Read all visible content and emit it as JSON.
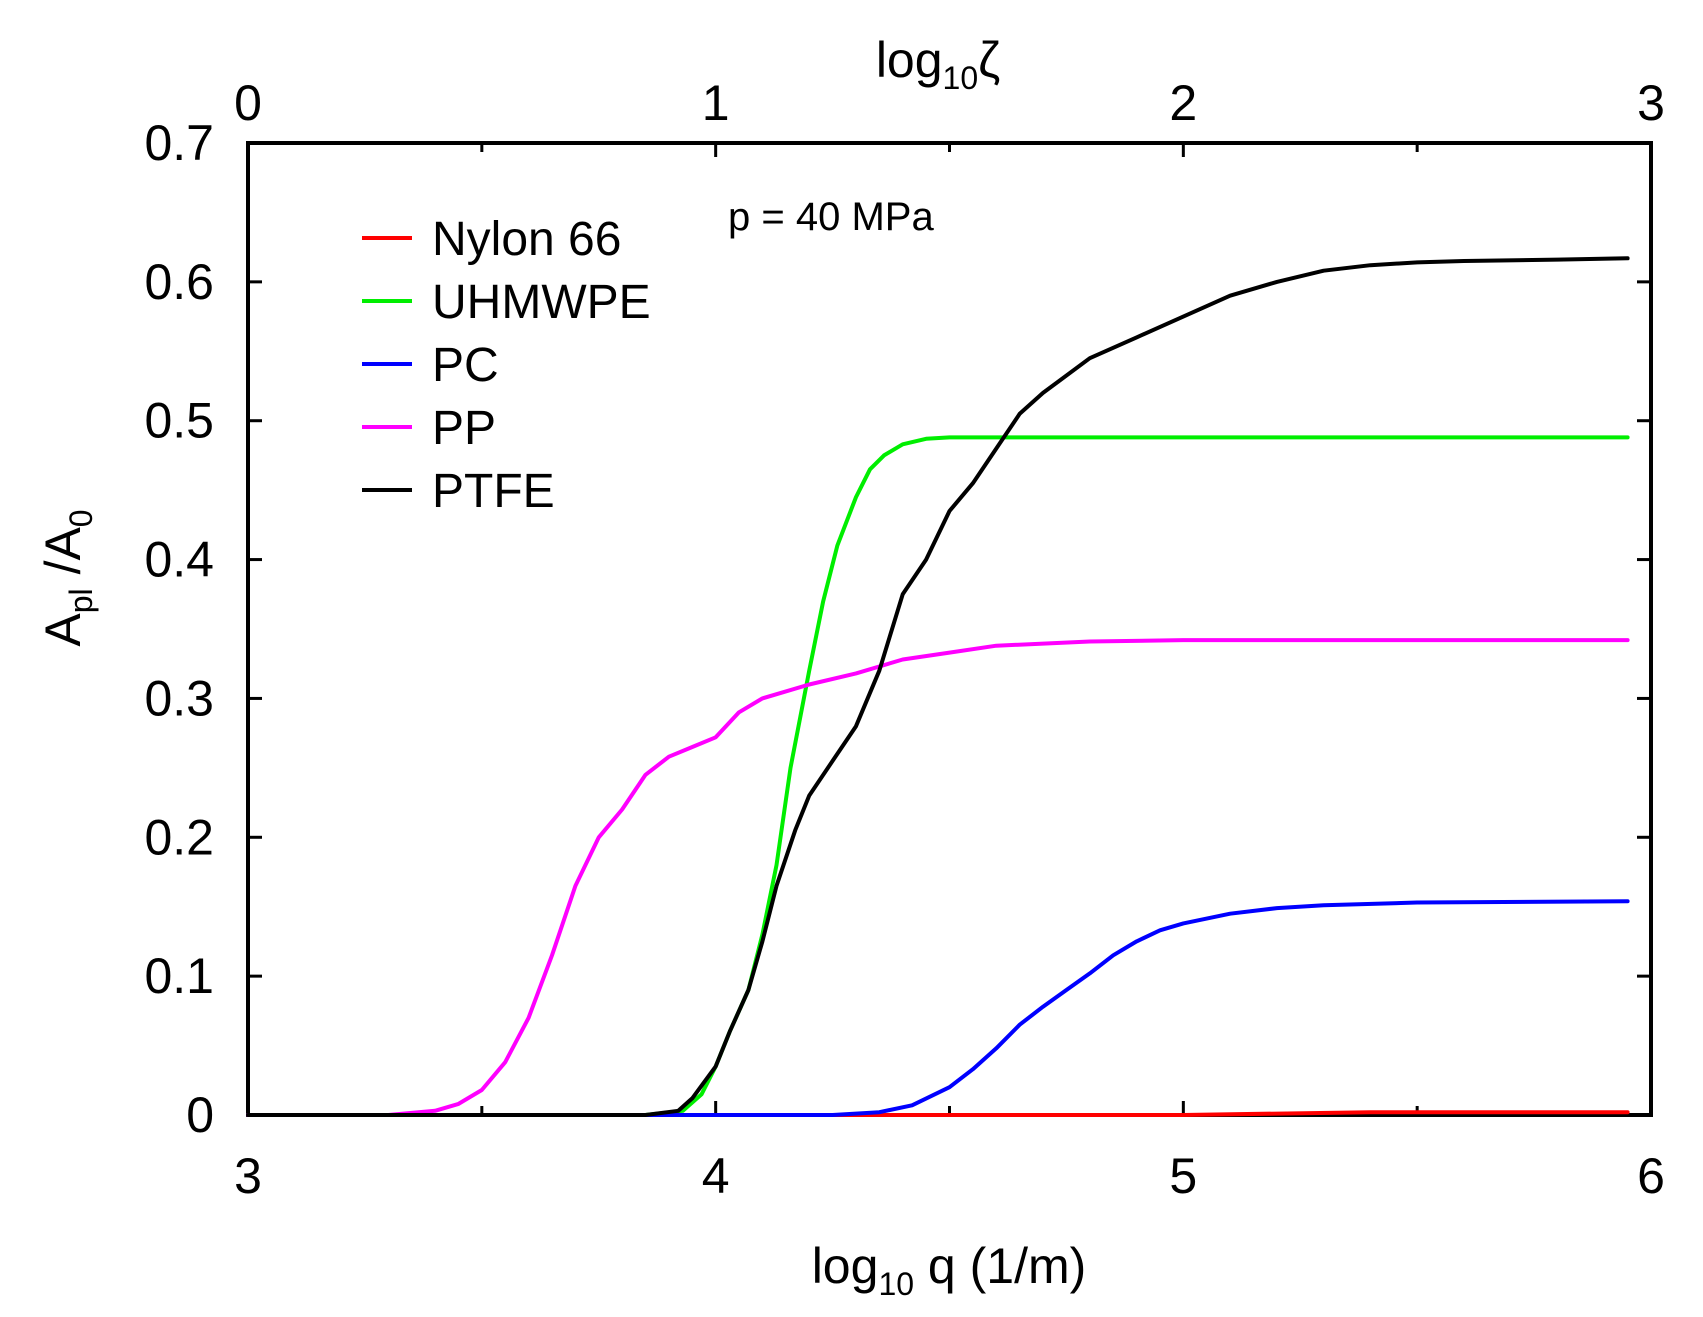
{
  "chart_data": {
    "type": "line",
    "title": "",
    "annotation": "p = 40 MPa",
    "xlabel": {
      "pre": "log",
      "sub": "10",
      "post": " q  (1/m)"
    },
    "ylabel": {
      "main1": "A",
      "sub1": "pl",
      "mid": " /A",
      "sub2": "0"
    },
    "top_xlabel": {
      "pre": "log",
      "sub": "10",
      "post": "ζ"
    },
    "xlim": [
      3,
      6
    ],
    "ylim": [
      0,
      0.7
    ],
    "x_ticks": [
      "3",
      "4",
      "5",
      "6"
    ],
    "top_x_ticks": [
      "0",
      "1",
      "2",
      "3"
    ],
    "y_ticks": [
      "0",
      "0.1",
      "0.2",
      "0.3",
      "0.4",
      "0.5",
      "0.6",
      "0.7"
    ],
    "grid": false,
    "legend_position": "top-left",
    "series": [
      {
        "name": "Nylon 66",
        "color": "#ff0000",
        "x": [
          3.0,
          5.0,
          5.4,
          5.95
        ],
        "y": [
          0.0,
          0.0,
          0.002,
          0.002
        ]
      },
      {
        "name": "UHMWPE",
        "color": "#00ee00",
        "x": [
          3.0,
          3.85,
          3.93,
          3.97,
          4.0,
          4.03,
          4.07,
          4.1,
          4.13,
          4.16,
          4.2,
          4.23,
          4.26,
          4.3,
          4.33,
          4.36,
          4.4,
          4.45,
          4.5,
          4.6,
          5.0,
          5.95
        ],
        "y": [
          0.0,
          0.0,
          0.003,
          0.015,
          0.035,
          0.06,
          0.09,
          0.13,
          0.18,
          0.25,
          0.32,
          0.37,
          0.41,
          0.445,
          0.465,
          0.475,
          0.483,
          0.487,
          0.488,
          0.488,
          0.488,
          0.488
        ]
      },
      {
        "name": "PC",
        "color": "#0000ff",
        "x": [
          3.0,
          4.25,
          4.35,
          4.42,
          4.5,
          4.55,
          4.6,
          4.65,
          4.7,
          4.75,
          4.8,
          4.85,
          4.9,
          4.95,
          5.0,
          5.1,
          5.2,
          5.3,
          5.5,
          5.95
        ],
        "y": [
          0.0,
          0.0,
          0.002,
          0.007,
          0.02,
          0.033,
          0.048,
          0.065,
          0.078,
          0.09,
          0.102,
          0.115,
          0.125,
          0.133,
          0.138,
          0.145,
          0.149,
          0.151,
          0.153,
          0.154
        ]
      },
      {
        "name": "PP",
        "color": "#ff00ff",
        "x": [
          3.0,
          3.3,
          3.4,
          3.45,
          3.5,
          3.55,
          3.6,
          3.65,
          3.7,
          3.75,
          3.8,
          3.85,
          3.9,
          3.95,
          4.0,
          4.05,
          4.1,
          4.2,
          4.3,
          4.4,
          4.5,
          4.6,
          4.8,
          5.0,
          5.5,
          5.95
        ],
        "y": [
          0.0,
          0.0,
          0.003,
          0.008,
          0.018,
          0.038,
          0.07,
          0.115,
          0.165,
          0.2,
          0.22,
          0.245,
          0.258,
          0.265,
          0.272,
          0.29,
          0.3,
          0.31,
          0.318,
          0.328,
          0.333,
          0.338,
          0.341,
          0.342,
          0.342,
          0.342
        ]
      },
      {
        "name": "PTFE",
        "color": "#000000",
        "x": [
          3.0,
          3.85,
          3.92,
          3.95,
          4.0,
          4.03,
          4.07,
          4.1,
          4.13,
          4.17,
          4.2,
          4.25,
          4.3,
          4.35,
          4.4,
          4.45,
          4.5,
          4.55,
          4.6,
          4.65,
          4.7,
          4.8,
          4.9,
          5.0,
          5.1,
          5.2,
          5.3,
          5.4,
          5.5,
          5.6,
          5.8,
          5.95
        ],
        "y": [
          0.0,
          0.0,
          0.003,
          0.012,
          0.035,
          0.06,
          0.09,
          0.125,
          0.165,
          0.205,
          0.23,
          0.255,
          0.28,
          0.32,
          0.375,
          0.4,
          0.435,
          0.455,
          0.48,
          0.505,
          0.52,
          0.545,
          0.56,
          0.575,
          0.59,
          0.6,
          0.608,
          0.612,
          0.614,
          0.615,
          0.616,
          0.617
        ]
      }
    ]
  }
}
